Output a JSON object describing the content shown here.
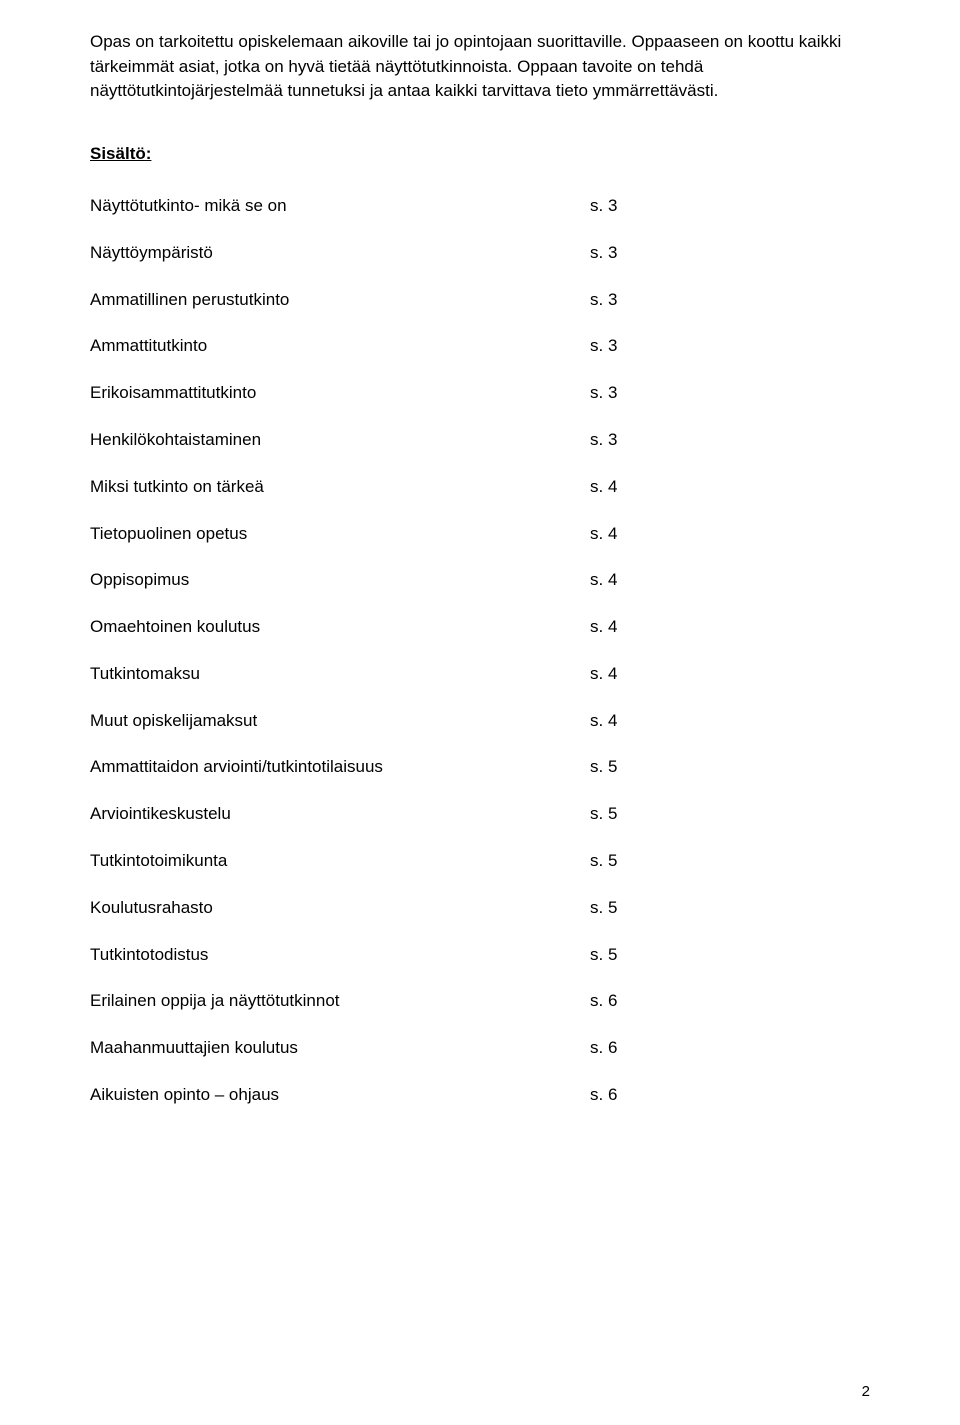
{
  "intro_text": "Opas on tarkoitettu opiskelemaan aikoville tai jo opintojaan suorittaville. Oppaaseen on koottu kaikki tärkeimmät asiat, jotka on hyvä tietää näyttötutkinnoista. Oppaan tavoite on tehdä näyttötutkintojärjestelmää tunnetuksi ja antaa kaikki tarvittava tieto ymmärrettävästi.",
  "section_heading": "Sisältö:",
  "toc": [
    {
      "label": "Näyttötutkinto- mikä se on",
      "page": "s. 3"
    },
    {
      "label": "Näyttöympäristö",
      "page": "s. 3"
    },
    {
      "label": "Ammatillinen perustutkinto",
      "page": "s. 3"
    },
    {
      "label": "Ammattitutkinto",
      "page": "s. 3"
    },
    {
      "label": "Erikoisammattitutkinto",
      "page": "s. 3"
    },
    {
      "label": "Henkilökohtaistaminen",
      "page": "s. 3"
    },
    {
      "label": "Miksi tutkinto on tärkeä",
      "page": "s. 4"
    },
    {
      "label": "Tietopuolinen opetus",
      "page": "s. 4"
    },
    {
      "label": "Oppisopimus",
      "page": "s. 4"
    },
    {
      "label": "Omaehtoinen koulutus",
      "page": "s. 4"
    },
    {
      "label": "Tutkintomaksu",
      "page": "s. 4"
    },
    {
      "label": "Muut opiskelijamaksut",
      "page": "s. 4"
    },
    {
      "label": "Ammattitaidon arviointi/tutkintotilaisuus",
      "page": "s. 5"
    },
    {
      "label": "Arviointikeskustelu",
      "page": "s. 5"
    },
    {
      "label": "Tutkintotoimikunta",
      "page": "s. 5"
    },
    {
      "label": "Koulutusrahasto",
      "page": "s. 5"
    },
    {
      "label": "Tutkintotodistus",
      "page": "s. 5"
    },
    {
      "label": "Erilainen oppija ja näyttötutkinnot",
      "page": "s. 6"
    },
    {
      "label": "Maahanmuuttajien koulutus",
      "page": "s. 6"
    },
    {
      "label": "Aikuisten opinto – ohjaus",
      "page": "s. 6"
    }
  ],
  "page_number": "2"
}
